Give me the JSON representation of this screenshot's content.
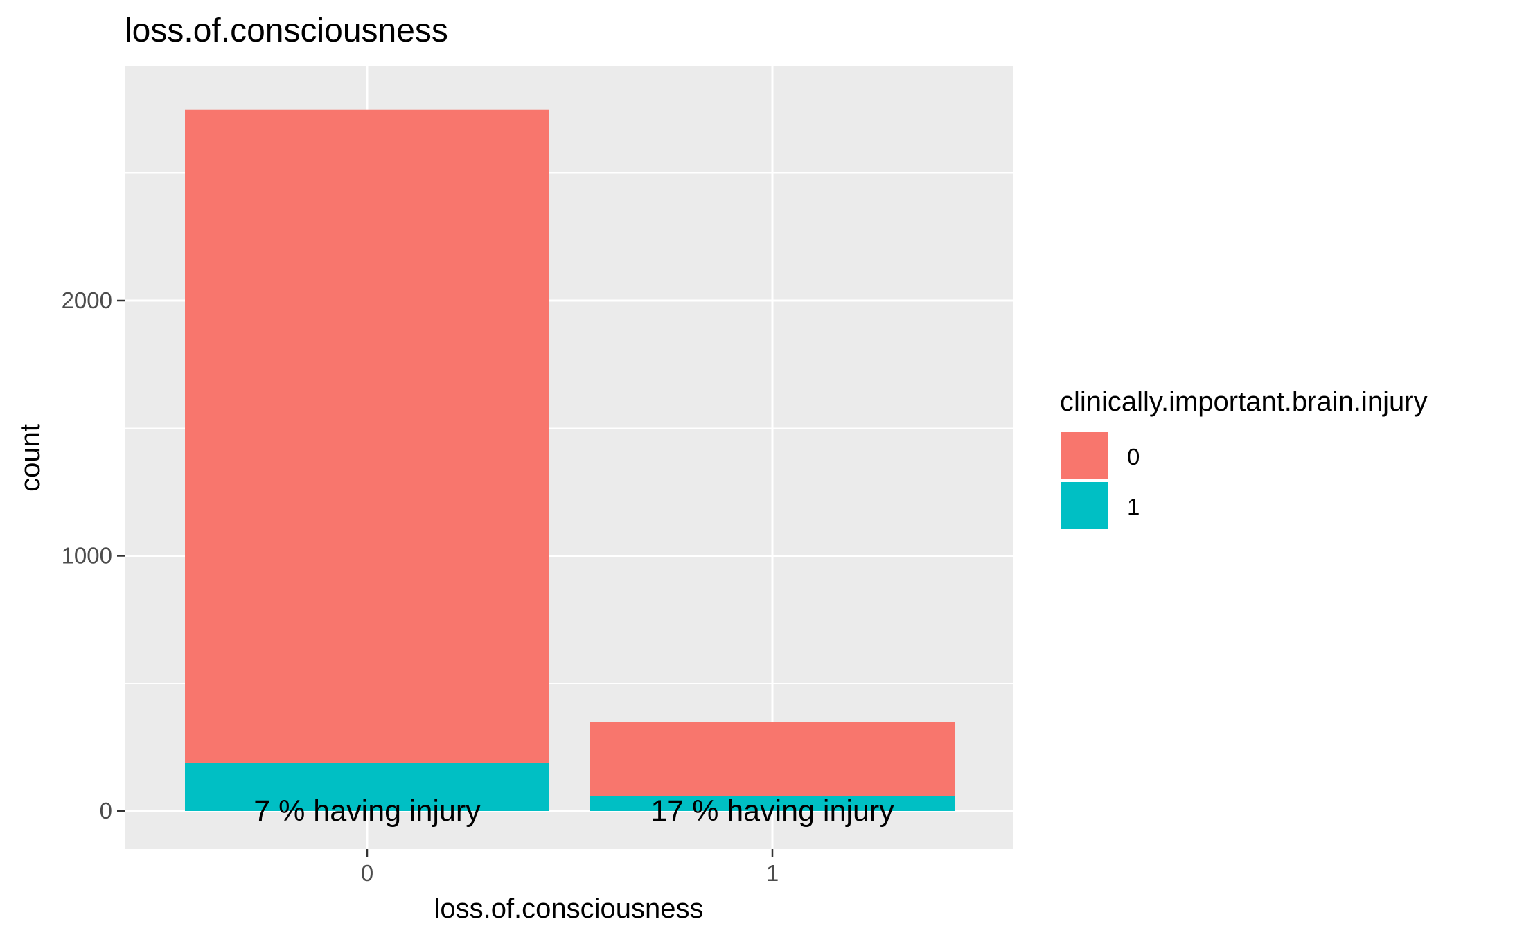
{
  "chart_data": {
    "type": "bar",
    "stacked": true,
    "title": "loss.of.consciousness",
    "xlabel": "loss.of.consciousness",
    "ylabel": "count",
    "categories": [
      "0",
      "1"
    ],
    "series": [
      {
        "name": "0",
        "values": [
          2557,
          290
        ]
      },
      {
        "name": "1",
        "values": [
          190,
          59
        ]
      }
    ],
    "annotations": [
      "7 % having injury",
      "17 % having injury"
    ],
    "ylim": [
      -135,
      2900
    ],
    "yticks": [
      0,
      1000,
      2000
    ],
    "y_minor_gridlines": [
      500,
      1500,
      2500
    ],
    "grid": true,
    "legend": {
      "title": "clinically.important.brain.injury",
      "position": "right",
      "entries": [
        "0",
        "1"
      ]
    },
    "colors": {
      "0": "#F8766D",
      "1": "#00BFC4",
      "panel": "#EBEBEB",
      "grid": "#FFFFFF",
      "axis_text": "#4D4D4D",
      "tick": "#333333"
    }
  }
}
